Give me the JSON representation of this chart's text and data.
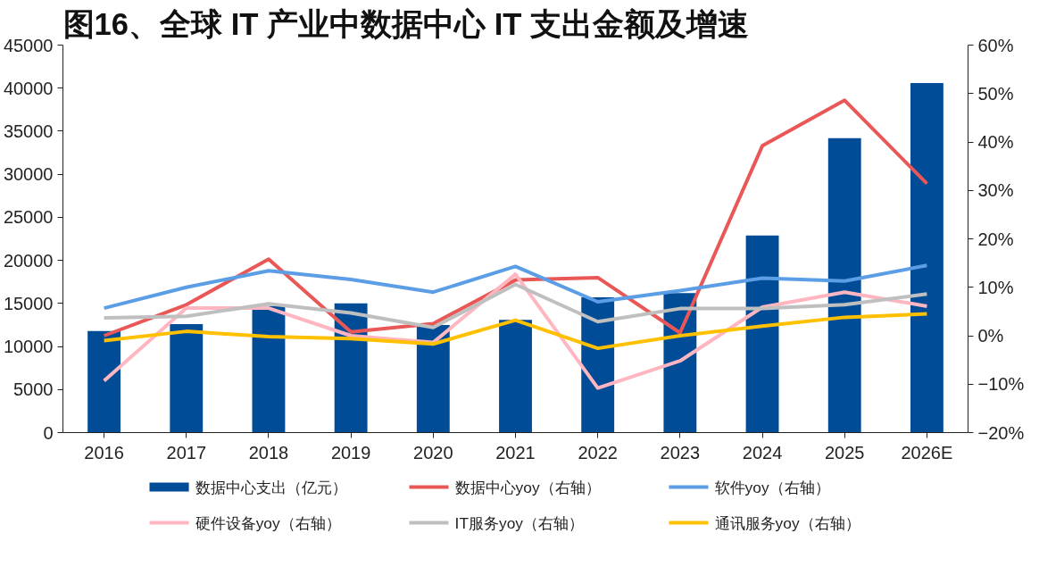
{
  "chart_data": {
    "type": "bar",
    "title": "图16、全球 IT 产业中数据中心 IT 支出金额及增速",
    "categories": [
      "2016",
      "2017",
      "2018",
      "2019",
      "2020",
      "2021",
      "2022",
      "2023",
      "2024",
      "2025",
      "2026E"
    ],
    "series": [
      {
        "name": "数据中心支出（亿元）",
        "color": "#004c97",
        "values": [
          11800,
          12600,
          14700,
          15000,
          12500,
          13100,
          15700,
          16200,
          22900,
          34200,
          40600
        ]
      },
      {
        "name": "数据中心yoy（右轴）",
        "type": "line",
        "axis": "y2",
        "color": "#e95757",
        "values": [
          0,
          6.4,
          15.8,
          0.8,
          2.5,
          11.5,
          12.0,
          0.6,
          39.2,
          48.6,
          31.4
        ]
      },
      {
        "name": "软件yoy（右轴）",
        "type": "line",
        "axis": "y2",
        "color": "#5b9ee6",
        "values": [
          5.7,
          10.0,
          13.4,
          11.6,
          9.0,
          14.3,
          7.0,
          9.3,
          11.9,
          11.3,
          14.5
        ]
      },
      {
        "name": "硬件设备yoy（右轴）",
        "type": "line",
        "axis": "y2",
        "color": "#ffb6c1",
        "values": [
          -9.3,
          5.7,
          5.7,
          0,
          -1.4,
          12.7,
          -10.8,
          -5.2,
          5.9,
          9.0,
          6.1
        ]
      },
      {
        "name": "IT服务yoy（右轴）",
        "type": "line",
        "axis": "y2",
        "color": "#bfbfbf",
        "values": [
          3.7,
          4.0,
          6.6,
          4.7,
          1.7,
          10.6,
          2.9,
          5.6,
          5.6,
          6.4,
          8.6
        ]
      },
      {
        "name": "通讯服务yoy（右轴）",
        "type": "line",
        "axis": "y2",
        "color": "#ffc000",
        "values": [
          -1.0,
          0.9,
          -0.2,
          -0.6,
          -1.7,
          3.2,
          -2.6,
          0,
          2.0,
          3.8,
          4.5
        ]
      }
    ],
    "ylim": [
      0,
      45000
    ],
    "yticks": [
      0,
      5000,
      10000,
      15000,
      20000,
      25000,
      30000,
      35000,
      40000,
      45000
    ],
    "y2lim": [
      -20,
      60
    ],
    "y2ticks": [
      {
        "value": -20,
        "label": "−20%"
      },
      {
        "value": -10,
        "label": "−10%"
      },
      {
        "value": 0,
        "label": "0%"
      },
      {
        "value": 10,
        "label": "10%"
      },
      {
        "value": 20,
        "label": "20%"
      },
      {
        "value": 30,
        "label": "30%"
      },
      {
        "value": 40,
        "label": "40%"
      },
      {
        "value": 50,
        "label": "50%"
      },
      {
        "value": 60,
        "label": "60%"
      }
    ],
    "grid": false,
    "legend": "bottom"
  }
}
